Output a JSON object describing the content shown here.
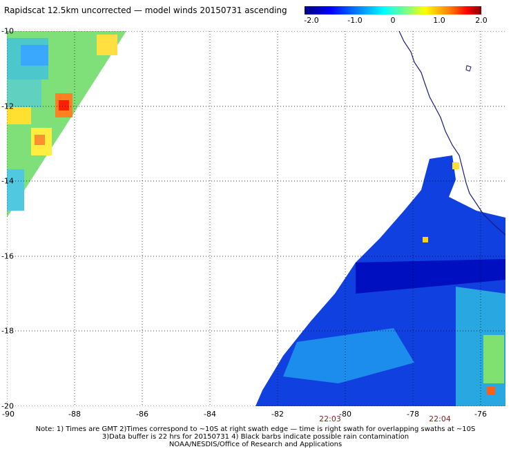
{
  "title": "Rapidscat 12.5km uncorrected — model winds 20150731 ascending",
  "colorbar": {
    "ticks": [
      "-2.0",
      "-1.0",
      "0",
      "1.0",
      "2.0"
    ],
    "range": [
      -2.0,
      2.0
    ]
  },
  "axes": {
    "lat_labels": [
      "-10",
      "-12",
      "-14",
      "-16",
      "-18",
      "-20"
    ],
    "lon_labels": [
      "-90",
      "-88",
      "-86",
      "-84",
      "-82",
      "-80",
      "-78",
      "-76"
    ],
    "lat_range": [
      -20,
      -10
    ],
    "lon_range": [
      -90,
      -75.3
    ],
    "grid": "dotted"
  },
  "swath_times": [
    {
      "label": "22:03",
      "lon": -80
    },
    {
      "label": "22:04",
      "lon": -76.8
    }
  ],
  "notes": {
    "line1": "Note: 1) Times are GMT 2)Times correspond to ~10S at right swath edge — time is right swath for overlapping swaths at ~10S",
    "line2": "3)Data buffer is 22 hrs for 20150731 4) Black barbs indicate possible rain contamination",
    "line3": "NOAA/NESDIS/Office of Research and Applications"
  },
  "colors": {
    "coastline": "#1a1a7a",
    "grid": "#000000"
  }
}
